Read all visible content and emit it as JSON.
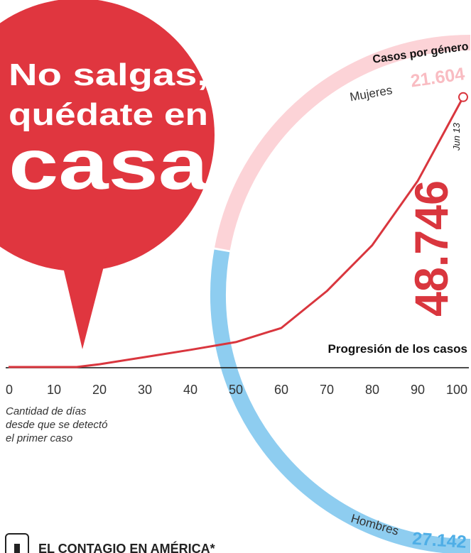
{
  "banner": {
    "lines": [
      "No salgas,",
      "quédate en",
      "casa"
    ]
  },
  "chart_data": [
    {
      "type": "line",
      "title": "Progresión de los casos",
      "xlabel": [
        "Cantidad de días",
        "desde que se detectó",
        "el primer caso"
      ],
      "annotation": "Jun 13",
      "x": [
        0,
        10,
        15,
        20,
        30,
        40,
        50,
        60,
        70,
        80,
        90,
        100
      ],
      "xlim": [
        0,
        100
      ],
      "xticks": [
        0,
        10,
        20,
        30,
        40,
        50,
        60,
        70,
        80,
        90,
        100
      ],
      "ylim": [
        0,
        50000
      ],
      "series": [
        {
          "color": "#d9363e",
          "values": [
            0,
            0,
            0,
            500,
            1800,
            3100,
            4500,
            7050,
            13700,
            22000,
            33600,
            48746
          ],
          "value_labels": [
            null,
            null,
            null,
            null,
            null,
            null,
            null,
            null,
            null,
            null,
            null,
            "48.746"
          ]
        }
      ]
    },
    {
      "type": "arc",
      "title": "Casos por género",
      "categories": [
        "Mujeres",
        "Hombres"
      ],
      "values": [
        21604,
        27142
      ],
      "value_labels": [
        "21.604",
        "27.142"
      ],
      "colors": [
        "#fcd3d7",
        "#8ecdf0"
      ],
      "label_colors": [
        "#f9bcc2",
        "#4eaee6"
      ]
    }
  ],
  "footer": {
    "title": "EL CONTAGIO EN AMÉRICA*"
  }
}
